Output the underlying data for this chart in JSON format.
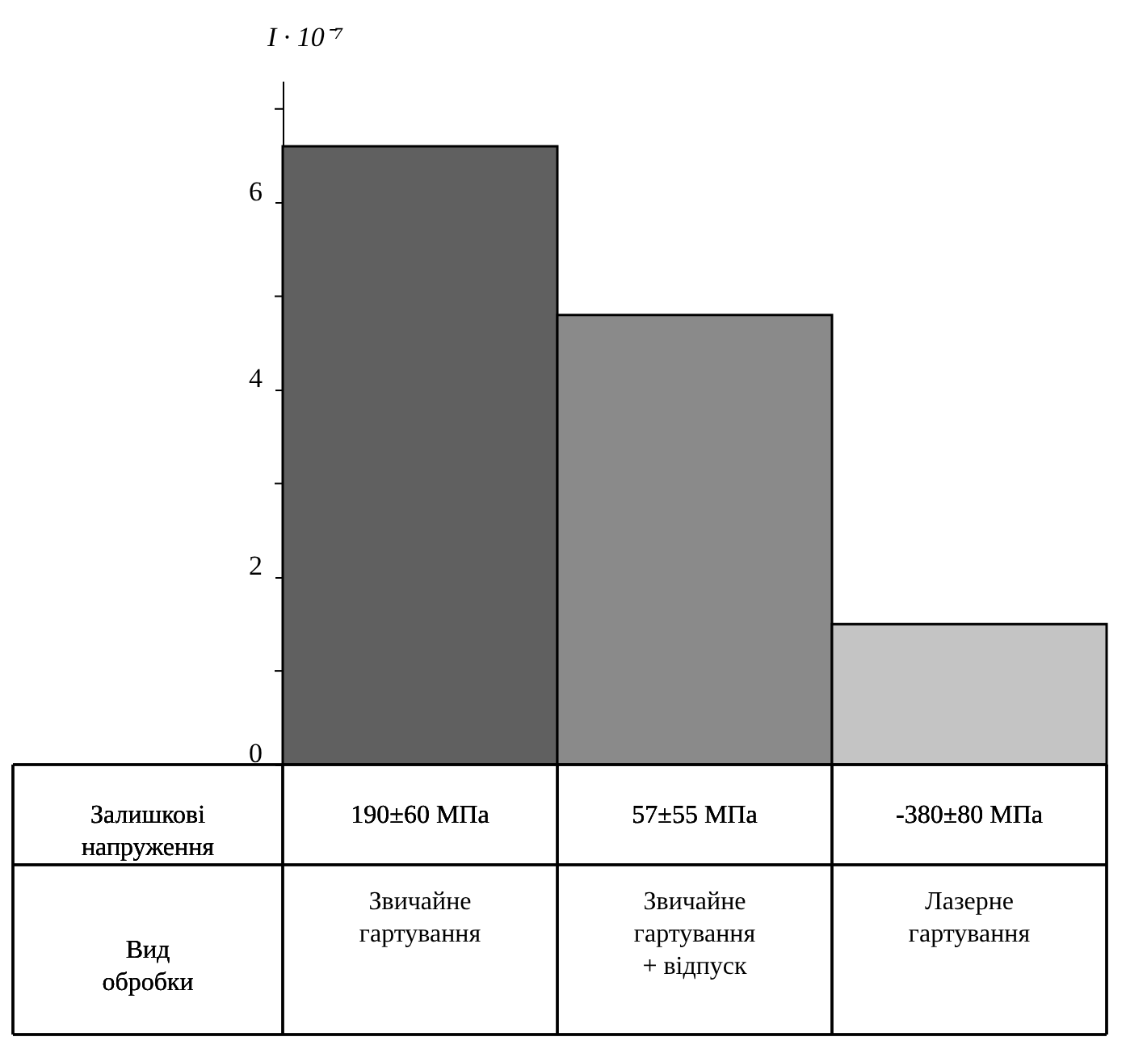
{
  "chart_data": {
    "type": "bar",
    "ylabel": "I · 10⁻⁷",
    "xlabel": "Вид обробки",
    "categories": [
      "Звичайне гартування",
      "Звичайне гартування + відпуск",
      "Лазерне гартування"
    ],
    "values": [
      6.6,
      4.8,
      1.5
    ],
    "colors": [
      "#606060",
      "#8a8a8a",
      "#c4c4c4"
    ],
    "ylim": [
      0,
      7.3
    ],
    "yticks": [
      0,
      {
        "value": 1,
        "label": null
      },
      2,
      {
        "value": 3,
        "label": null
      },
      4,
      {
        "value": 5,
        "label": null
      },
      6,
      {
        "value": 7,
        "label": null
      }
    ],
    "grid": false,
    "annotations": [
      "Залишкові напруження",
      "190±60 МПа",
      "57±55 МПа",
      "-380±80 МПа"
    ]
  }
}
